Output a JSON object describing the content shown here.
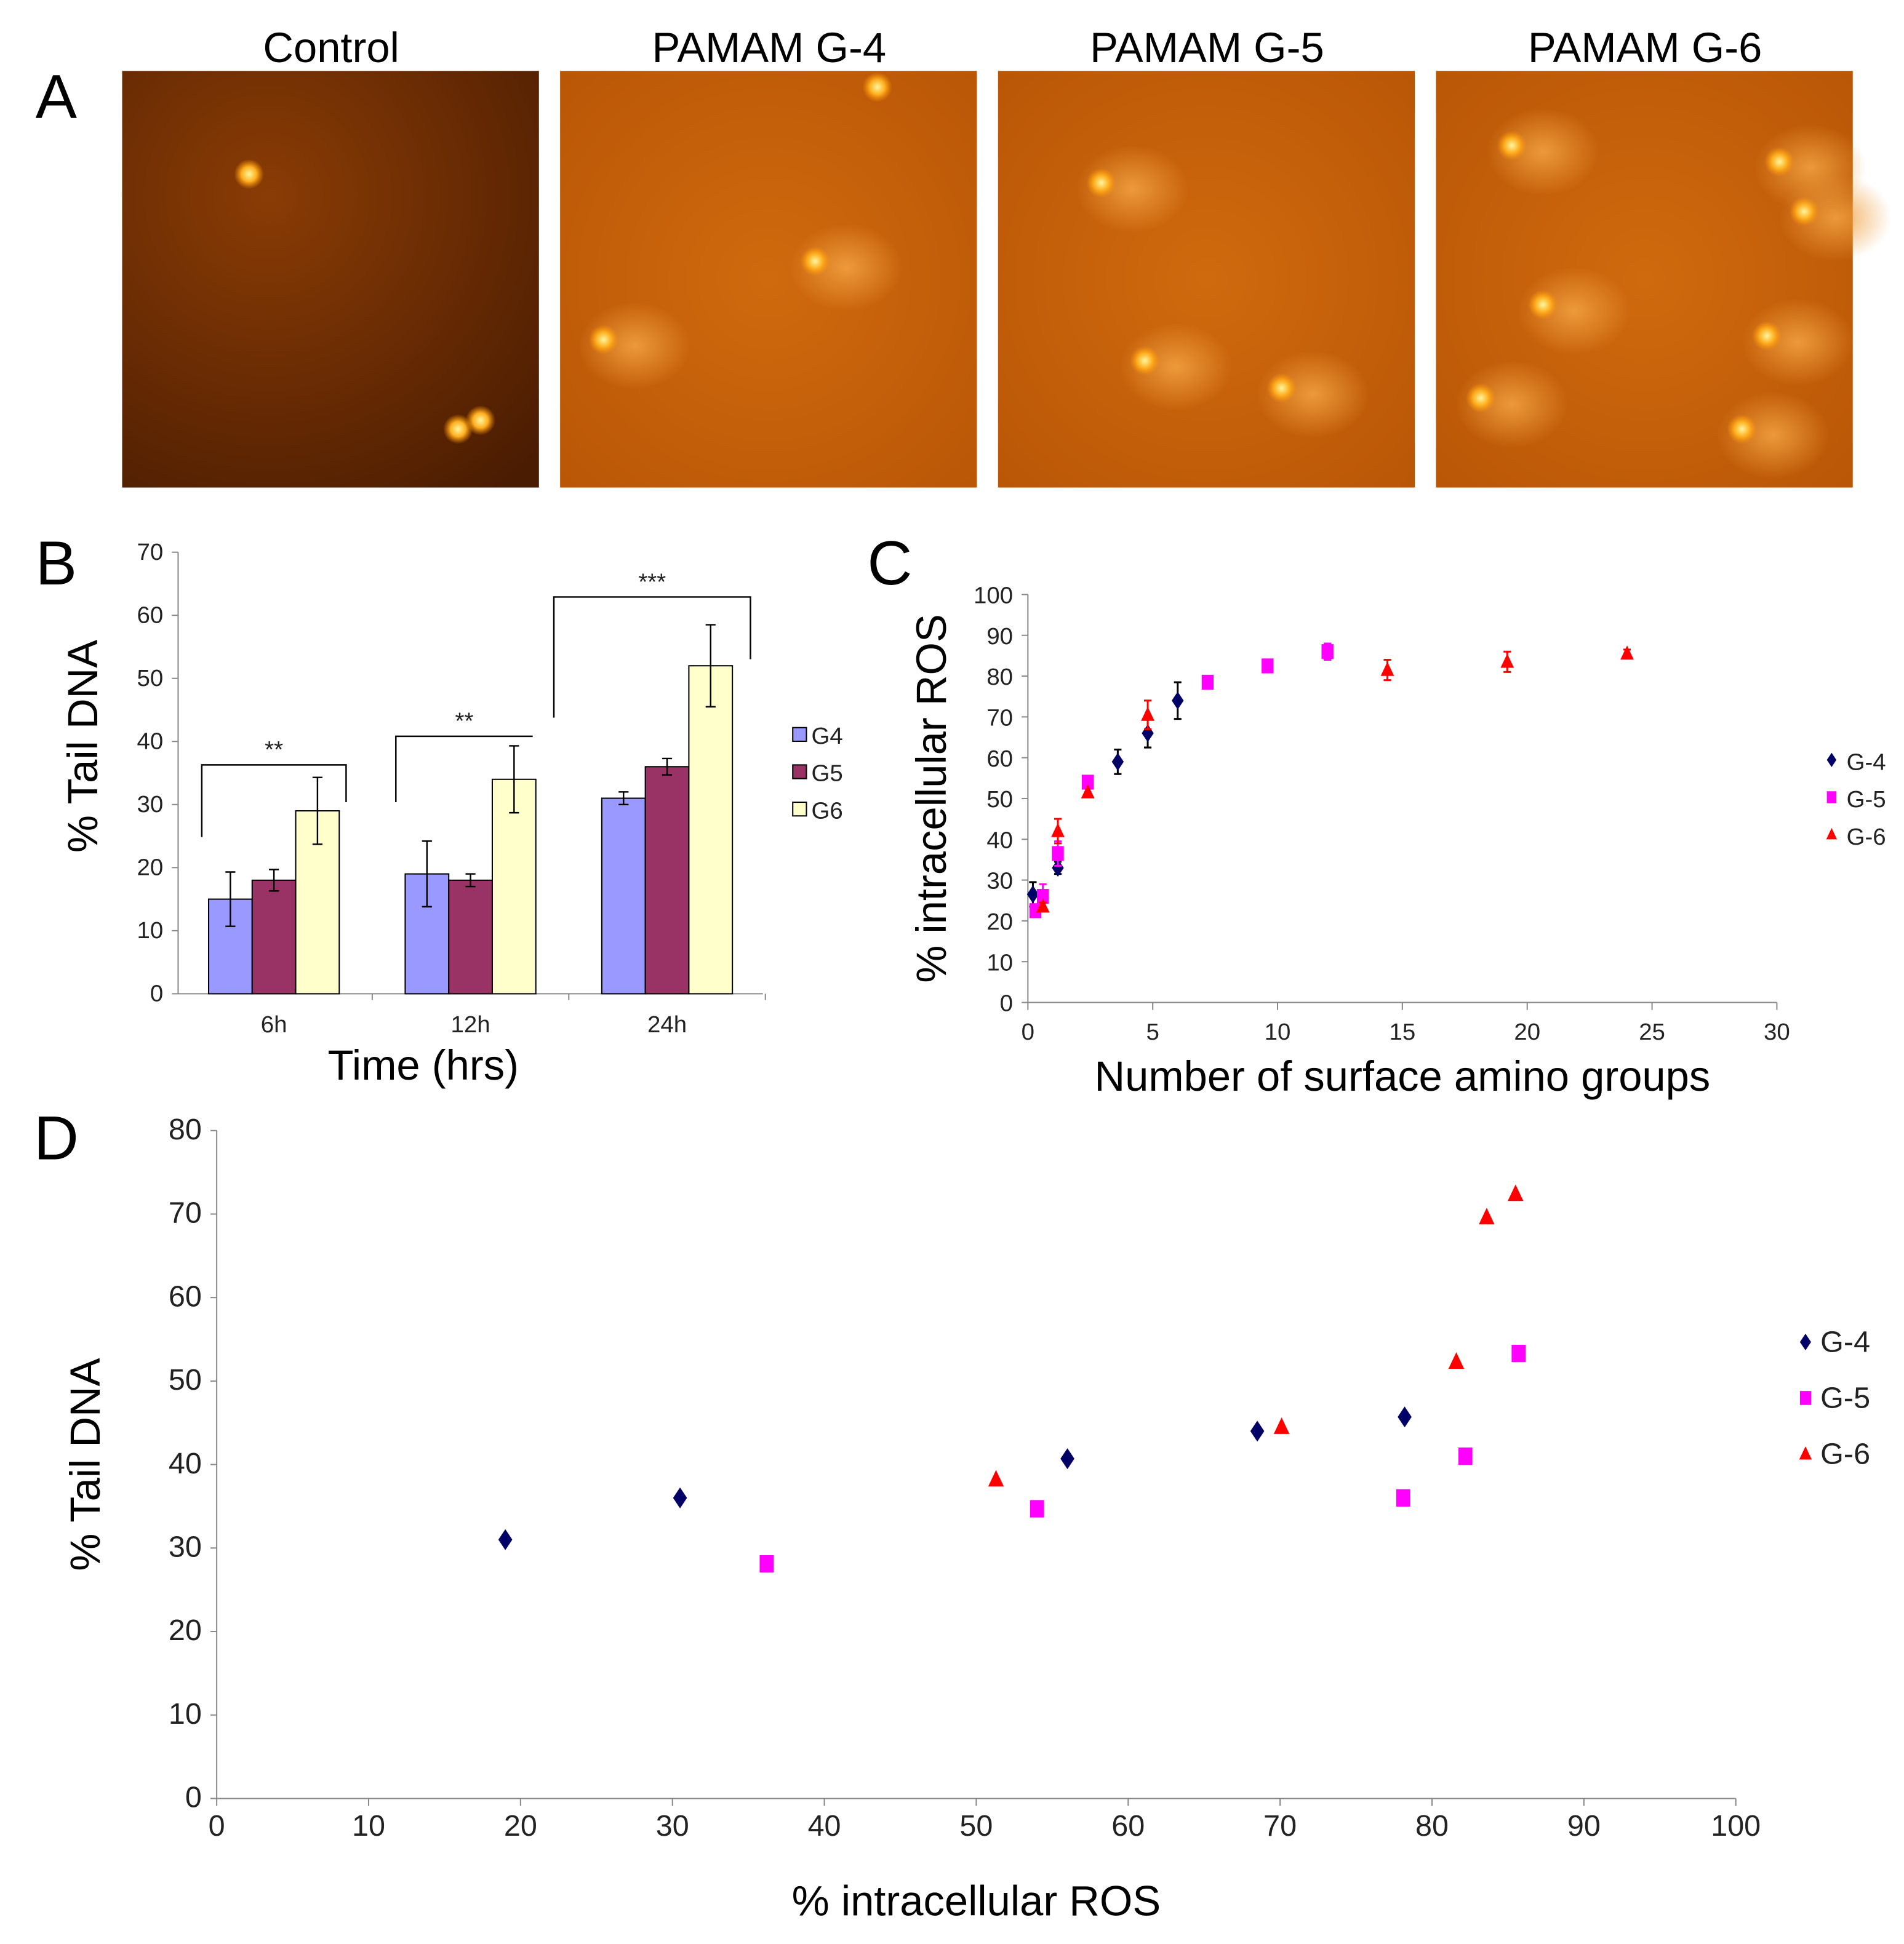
{
  "panels": {
    "a": "A",
    "b": "B",
    "c": "C",
    "d": "D"
  },
  "panel_a": {
    "images": [
      "Control",
      "PAMAM  G-4",
      "PAMAM  G-5",
      "PAMAM  G-6"
    ]
  },
  "chart_data": [
    {
      "type": "bar",
      "panel": "B",
      "categories": [
        "6h",
        "12h",
        "24h"
      ],
      "xlabel": "Time (hrs)",
      "ylabel": "% Tail DNA",
      "ylim": [
        0,
        70
      ],
      "yticks": [
        0,
        10,
        20,
        30,
        40,
        50,
        60,
        70
      ],
      "legend": "right",
      "series": [
        {
          "name": "G4",
          "color": "#9999ff",
          "values": [
            15,
            19,
            31
          ],
          "errors": [
            4.3,
            5.2,
            1
          ]
        },
        {
          "name": "G5",
          "color": "#993366",
          "values": [
            18,
            18,
            36
          ],
          "errors": [
            1.7,
            1,
            1.3
          ]
        },
        {
          "name": "G6",
          "color": "#ffffcc",
          "values": [
            29,
            34,
            52
          ],
          "errors": [
            5.3,
            5.3,
            6.5
          ]
        }
      ],
      "significance": [
        {
          "group": "6h",
          "label": "**"
        },
        {
          "group": "12h",
          "label": "**"
        },
        {
          "group": "24h",
          "label": "***"
        }
      ]
    },
    {
      "type": "scatter",
      "panel": "C",
      "xlabel": "Number of surface amino groups",
      "ylabel": "% intracellular ROS",
      "xlim": [
        0,
        30
      ],
      "ylim": [
        0,
        100
      ],
      "xticks": [
        0,
        5,
        10,
        15,
        20,
        25,
        30
      ],
      "yticks": [
        0,
        10,
        20,
        30,
        40,
        50,
        60,
        70,
        80,
        90,
        100
      ],
      "legend": "right",
      "series": [
        {
          "name": "G-4",
          "color": "#000066",
          "marker": "diamond",
          "x": [
            0.2,
            1.2,
            3.6,
            4.8,
            6
          ],
          "y": [
            26.5,
            33,
            59,
            66,
            74
          ],
          "err": [
            3,
            1.5,
            3,
            3.5,
            4.5
          ]
        },
        {
          "name": "G-5",
          "color": "#ff00ff",
          "marker": "square",
          "x": [
            0.3,
            0.6,
            1.2,
            2.4,
            7.2,
            9.6,
            12
          ],
          "y": [
            22.5,
            26,
            36.5,
            54,
            78.5,
            82.5,
            86
          ],
          "err": [
            0,
            3,
            3,
            0,
            0,
            0,
            2
          ]
        },
        {
          "name": "G-6",
          "color": "#ff0000",
          "marker": "triangle",
          "x": [
            0.6,
            1.2,
            2.4,
            4.8,
            14.4,
            19.2,
            24
          ],
          "y": [
            23.5,
            42,
            51.5,
            70.5,
            81.5,
            83.5,
            85.5
          ],
          "err": [
            1,
            3,
            0,
            3.5,
            2.5,
            2.5,
            1
          ]
        }
      ]
    },
    {
      "type": "scatter",
      "panel": "D",
      "xlabel": "% intracellular ROS",
      "ylabel": "% Tail DNA",
      "xlim": [
        0,
        100
      ],
      "ylim": [
        0,
        80
      ],
      "xticks": [
        0,
        10,
        20,
        30,
        40,
        50,
        60,
        70,
        80,
        90,
        100
      ],
      "yticks": [
        0,
        10,
        20,
        30,
        40,
        50,
        60,
        70,
        80
      ],
      "legend": "right",
      "series": [
        {
          "name": "G-4",
          "color": "#000066",
          "marker": "diamond",
          "x": [
            19,
            30.5,
            56,
            68.5,
            78.2
          ],
          "y": [
            31,
            36,
            40.7,
            44,
            45.7
          ]
        },
        {
          "name": "G-5",
          "color": "#ff00ff",
          "marker": "square",
          "x": [
            36.2,
            54,
            78.1,
            82.2,
            85.7
          ],
          "y": [
            28.1,
            34.7,
            36,
            41,
            53.3
          ]
        },
        {
          "name": "G-6",
          "color": "#ff0000",
          "marker": "triangle",
          "x": [
            51.3,
            70.1,
            81.6,
            83.6,
            85.5
          ],
          "y": [
            38.2,
            44.5,
            52.3,
            69.6,
            72.4
          ]
        }
      ]
    }
  ]
}
